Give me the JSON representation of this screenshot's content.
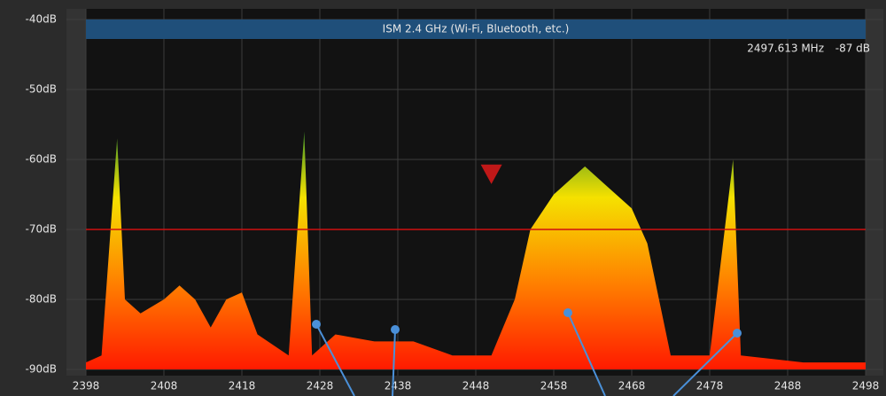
{
  "chart_data": {
    "type": "area",
    "band_label": "ISM 2.4 GHz (Wi-Fi, Bluetooth, etc.)",
    "band": [
      2398,
      2498
    ],
    "readout": {
      "frequency": "2497.613 MHz",
      "level": "-87 dB"
    },
    "x": [
      2398,
      2400,
      2402,
      2403,
      2405,
      2408,
      2410,
      2412,
      2414,
      2416,
      2418,
      2420,
      2424,
      2426,
      2427,
      2430,
      2435,
      2440,
      2445,
      2450,
      2453,
      2455,
      2458,
      2462,
      2465,
      2468,
      2470,
      2473,
      2478,
      2481,
      2482,
      2490,
      2498
    ],
    "series": [
      {
        "values": [
          -89,
          -88,
          -57,
          -80,
          -82,
          -80,
          -78,
          -80,
          -84,
          -80,
          -79,
          -85,
          -88,
          -56,
          -88,
          -85,
          -86,
          -86,
          -88,
          -88,
          -80,
          -70,
          -65,
          -61,
          -64,
          -67,
          -72,
          -88,
          -88,
          -60,
          -88,
          -89,
          -89
        ]
      }
    ],
    "threshold": -70,
    "marker": {
      "x": 2450,
      "y": -62
    },
    "xlim": [
      2398,
      2498
    ],
    "ylim": [
      -90,
      -40
    ],
    "xticks": [
      2398,
      2408,
      2418,
      2428,
      2438,
      2448,
      2458,
      2468,
      2478,
      2488,
      2498
    ],
    "yticks": [
      {
        "value": -40,
        "label": "-40dB"
      },
      {
        "value": -50,
        "label": "-50dB"
      },
      {
        "value": -60,
        "label": "-60dB"
      },
      {
        "value": -70,
        "label": "-70dB"
      },
      {
        "value": -80,
        "label": "-80dB"
      },
      {
        "value": -90,
        "label": "-90dB"
      }
    ],
    "grid": true
  }
}
